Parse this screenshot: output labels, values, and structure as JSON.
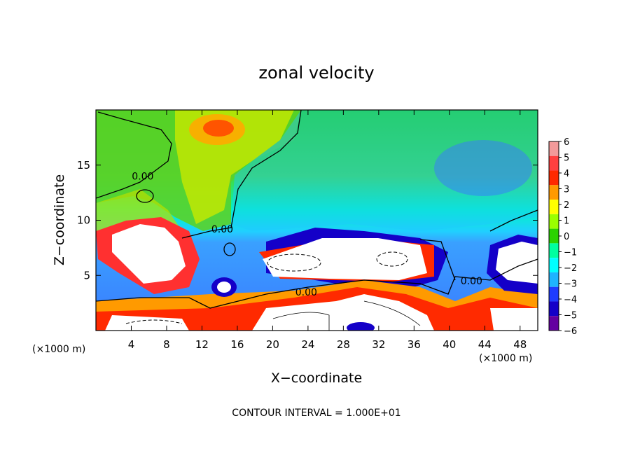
{
  "chart_data": {
    "type": "heatmap",
    "title": "zonal velocity",
    "xlabel": "X−coordinate",
    "ylabel": "Z−coordinate",
    "x_units_left": "(×1000 m)",
    "x_units_right": "(×1000 m)",
    "footer": "CONTOUR INTERVAL = 1.000E+01",
    "xlim": [
      0,
      50
    ],
    "ylim": [
      0,
      20
    ],
    "x_ticks": [
      4,
      8,
      12,
      16,
      20,
      24,
      28,
      32,
      36,
      40,
      44,
      48
    ],
    "x_tick_labels": [
      "4",
      "8",
      "12",
      "16",
      "20",
      "24",
      "28",
      "32",
      "36",
      "40",
      "44",
      "48"
    ],
    "y_ticks": [
      5,
      10,
      15
    ],
    "y_tick_labels": [
      "5",
      "10",
      "15"
    ],
    "colorbar": {
      "levels": [
        6,
        5,
        4,
        3,
        2,
        1,
        0,
        -1,
        -2,
        -3,
        -4,
        -5,
        -6
      ],
      "labels": [
        "6",
        "5",
        "4",
        "3",
        "2",
        "1",
        "0",
        "−1",
        "−2",
        "−3",
        "−4",
        "−5",
        "−6"
      ],
      "colors": [
        "#f29a9a",
        "#ff4040",
        "#ff2a00",
        "#ff9a00",
        "#ffff00",
        "#9aff00",
        "#2ad200",
        "#00ffa0",
        "#00ffff",
        "#1eb4ff",
        "#1e3cff",
        "#1400c8",
        "#6400a0"
      ]
    },
    "contour_labels": [
      {
        "text": "0.00",
        "x": 5.3,
        "z": 14.0
      },
      {
        "text": "0.00",
        "x": 14.3,
        "z": 9.2
      },
      {
        "text": "0.00",
        "x": 23.8,
        "z": 3.5
      },
      {
        "text": "0.00",
        "x": 42.5,
        "z": 4.5
      }
    ],
    "grid": false,
    "legend": "right"
  }
}
